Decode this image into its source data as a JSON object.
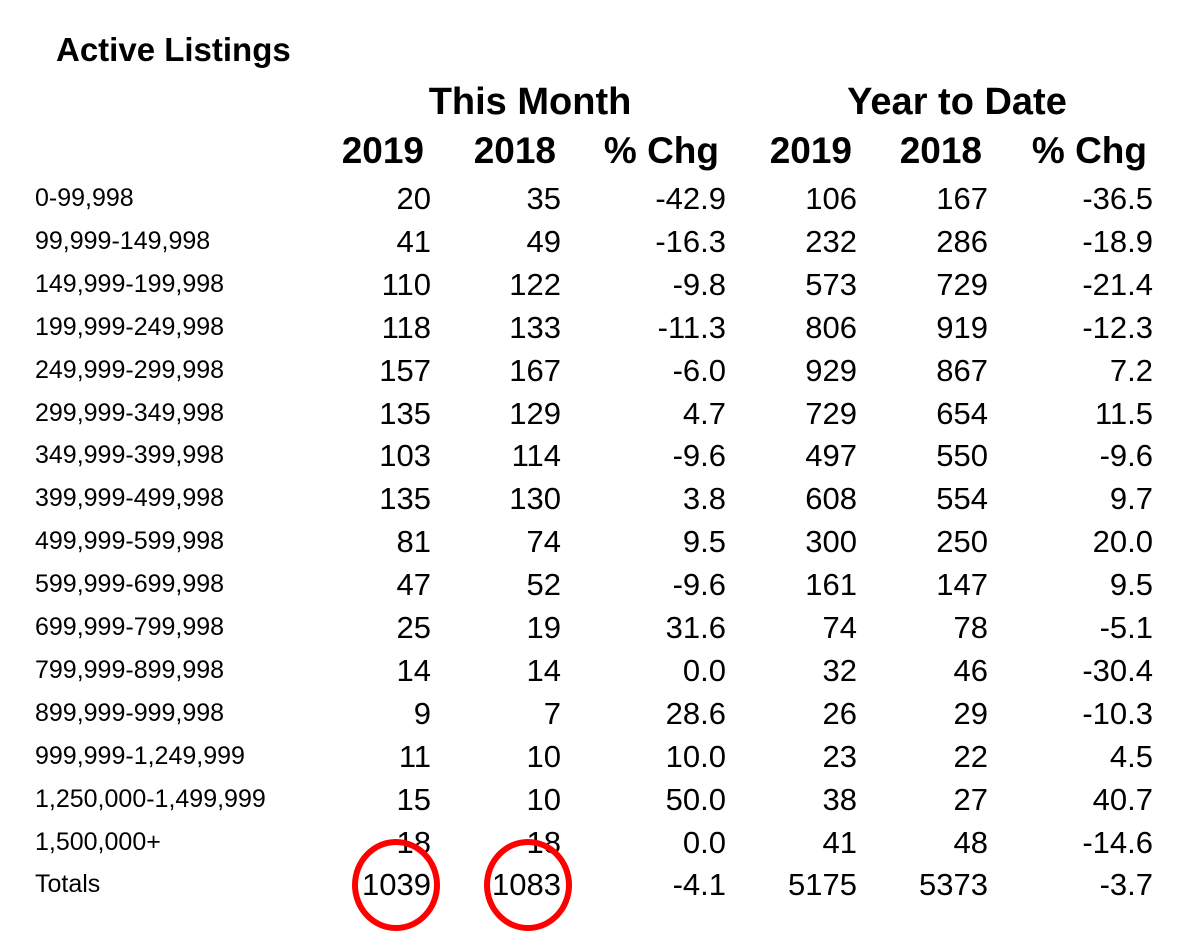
{
  "chart_data": {
    "type": "table",
    "title": "Active Listings",
    "column_groups": [
      "This Month",
      "Year to Date"
    ],
    "columns": [
      "2019",
      "2018",
      "% Chg",
      "2019",
      "2018",
      "% Chg"
    ],
    "rows": [
      {
        "label": "0-99,998",
        "values": [
          "20",
          "35",
          "-42.9",
          "106",
          "167",
          "-36.5"
        ]
      },
      {
        "label": "99,999-149,998",
        "values": [
          "41",
          "49",
          "-16.3",
          "232",
          "286",
          "-18.9"
        ]
      },
      {
        "label": "149,999-199,998",
        "values": [
          "110",
          "122",
          "-9.8",
          "573",
          "729",
          "-21.4"
        ]
      },
      {
        "label": "199,999-249,998",
        "values": [
          "118",
          "133",
          "-11.3",
          "806",
          "919",
          "-12.3"
        ]
      },
      {
        "label": "249,999-299,998",
        "values": [
          "157",
          "167",
          "-6.0",
          "929",
          "867",
          "7.2"
        ]
      },
      {
        "label": "299,999-349,998",
        "values": [
          "135",
          "129",
          "4.7",
          "729",
          "654",
          "11.5"
        ]
      },
      {
        "label": "349,999-399,998",
        "values": [
          "103",
          "114",
          "-9.6",
          "497",
          "550",
          "-9.6"
        ]
      },
      {
        "label": "399,999-499,998",
        "values": [
          "135",
          "130",
          "3.8",
          "608",
          "554",
          "9.7"
        ]
      },
      {
        "label": "499,999-599,998",
        "values": [
          "81",
          "74",
          "9.5",
          "300",
          "250",
          "20.0"
        ]
      },
      {
        "label": "599,999-699,998",
        "values": [
          "47",
          "52",
          "-9.6",
          "161",
          "147",
          "9.5"
        ]
      },
      {
        "label": "699,999-799,998",
        "values": [
          "25",
          "19",
          "31.6",
          "74",
          "78",
          "-5.1"
        ]
      },
      {
        "label": "799,999-899,998",
        "values": [
          "14",
          "14",
          "0.0",
          "32",
          "46",
          "-30.4"
        ]
      },
      {
        "label": "899,999-999,998",
        "values": [
          "9",
          "7",
          "28.6",
          "26",
          "29",
          "-10.3"
        ]
      },
      {
        "label": "999,999-1,249,999",
        "values": [
          "11",
          "10",
          "10.0",
          "23",
          "22",
          "4.5"
        ]
      },
      {
        "label": "1,250,000-1,499,999",
        "values": [
          "15",
          "10",
          "50.0",
          "38",
          "27",
          "40.7"
        ]
      },
      {
        "label": "1,500,000+",
        "values": [
          "18",
          "18",
          "0.0",
          "41",
          "48",
          "-14.6"
        ]
      },
      {
        "label": "Totals",
        "values": [
          "1039",
          "1083",
          "-4.1",
          "5175",
          "5373",
          "-3.7"
        ]
      }
    ],
    "highlighted_cells": [
      {
        "row": "Totals",
        "column_index": 0,
        "value": "1039"
      },
      {
        "row": "Totals",
        "column_index": 1,
        "value": "1083"
      }
    ],
    "highlight_color": "#ff0000"
  }
}
